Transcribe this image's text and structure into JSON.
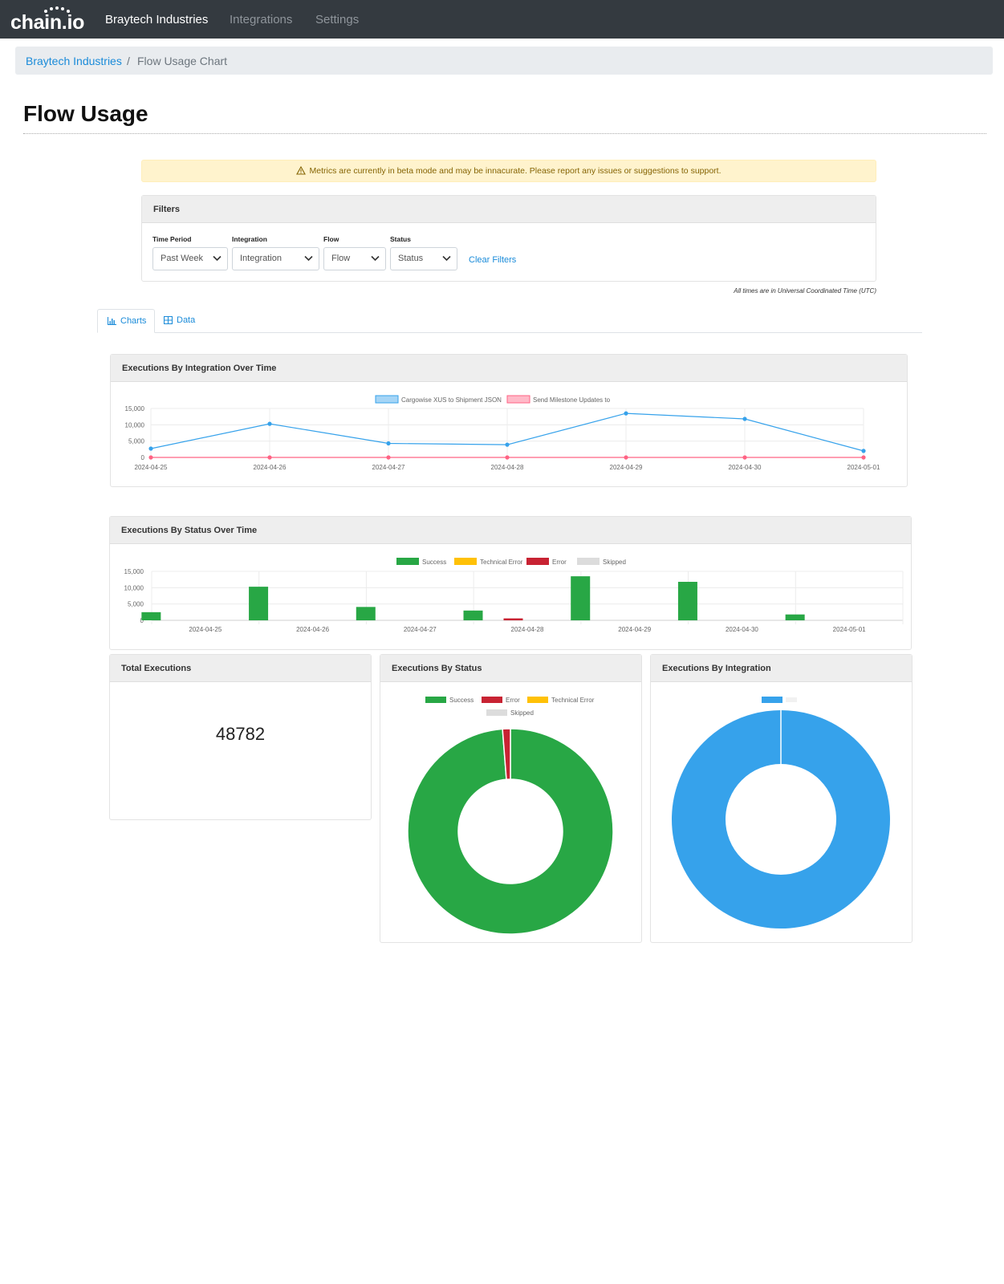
{
  "app": {
    "logo": "chain.io",
    "nav": {
      "company": "Braytech Industries",
      "integrations": "Integrations",
      "settings": "Settings"
    }
  },
  "breadcrumb": {
    "parent": "Braytech Industries",
    "separator": "/",
    "current": "Flow Usage Chart"
  },
  "page": {
    "title": "Flow Usage"
  },
  "alert": {
    "icon": "warning-icon",
    "text": "Metrics are currently in beta mode and may be innacurate. Please report any issues or suggestions to support."
  },
  "filters": {
    "title": "Filters",
    "time_period": {
      "label": "Time Period",
      "value": "Past Week"
    },
    "integration": {
      "label": "Integration",
      "value": "Integration"
    },
    "flow": {
      "label": "Flow",
      "value": "Flow"
    },
    "status": {
      "label": "Status",
      "value": "Status"
    },
    "clear": "Clear Filters",
    "note": "All times are in Universal Coordinated Time (UTC)"
  },
  "tabs": [
    {
      "label": "Charts",
      "icon": "bar-chart-icon",
      "active": true
    },
    {
      "label": "Data",
      "icon": "table-icon",
      "active": false
    }
  ],
  "colors": {
    "success": "#28a745",
    "technical_error": "#ffc107",
    "error": "#c82333",
    "skipped": "#dcdcdc",
    "series_blue": "#36a2eb",
    "series_pink": "#ff6384"
  },
  "panels": {
    "integration_time": "Executions By Integration Over Time",
    "status_time": "Executions By Status Over Time",
    "total": "Total Executions",
    "by_status": "Executions By Status",
    "by_integration": "Executions By Integration"
  },
  "total_executions": "48782",
  "chart_data": [
    {
      "type": "line",
      "title": "Executions By Integration Over Time",
      "categories": [
        "2024-04-25",
        "2024-04-26",
        "2024-04-27",
        "2024-04-28",
        "2024-04-29",
        "2024-04-30",
        "2024-05-01"
      ],
      "series": [
        {
          "name": "Cargowise XUS to Shipment JSON",
          "values": [
            2700,
            10300,
            4300,
            3900,
            13500,
            11800,
            2000
          ]
        },
        {
          "name": "Send Milestone Updates to",
          "values": [
            0,
            0,
            0,
            0,
            0,
            0,
            0
          ]
        }
      ],
      "yticks": [
        "15,000",
        "10,000",
        "5,000",
        "0"
      ],
      "ylim": [
        0,
        15000
      ],
      "legend": "top",
      "grid": true
    },
    {
      "type": "bar",
      "title": "Executions By Status Over Time",
      "categories": [
        "2024-04-25",
        "2024-04-26",
        "2024-04-27",
        "2024-04-28",
        "2024-04-29",
        "2024-04-30",
        "2024-05-01"
      ],
      "series": [
        {
          "name": "Success",
          "values": [
            2500,
            10300,
            4100,
            3000,
            13500,
            11800,
            1800
          ]
        },
        {
          "name": "Technical Error",
          "values": [
            0,
            0,
            0,
            0,
            0,
            0,
            0
          ]
        },
        {
          "name": "Error",
          "values": [
            0,
            0,
            0,
            600,
            0,
            0,
            0
          ]
        },
        {
          "name": "Skipped",
          "values": [
            0,
            0,
            0,
            0,
            0,
            0,
            0
          ]
        }
      ],
      "yticks": [
        "15,000",
        "10,000",
        "5,000",
        "0"
      ],
      "ylim": [
        0,
        15000
      ],
      "legend": "top",
      "grid": true
    },
    {
      "type": "pie",
      "title": "Executions By Status",
      "legend_order": [
        "Success",
        "Error",
        "Technical Error",
        "Skipped"
      ],
      "values": [
        48182,
        600,
        0,
        0
      ],
      "legend": "top"
    },
    {
      "type": "pie",
      "title": "Executions By Integration",
      "values": [
        48782
      ],
      "legend": "top"
    }
  ]
}
